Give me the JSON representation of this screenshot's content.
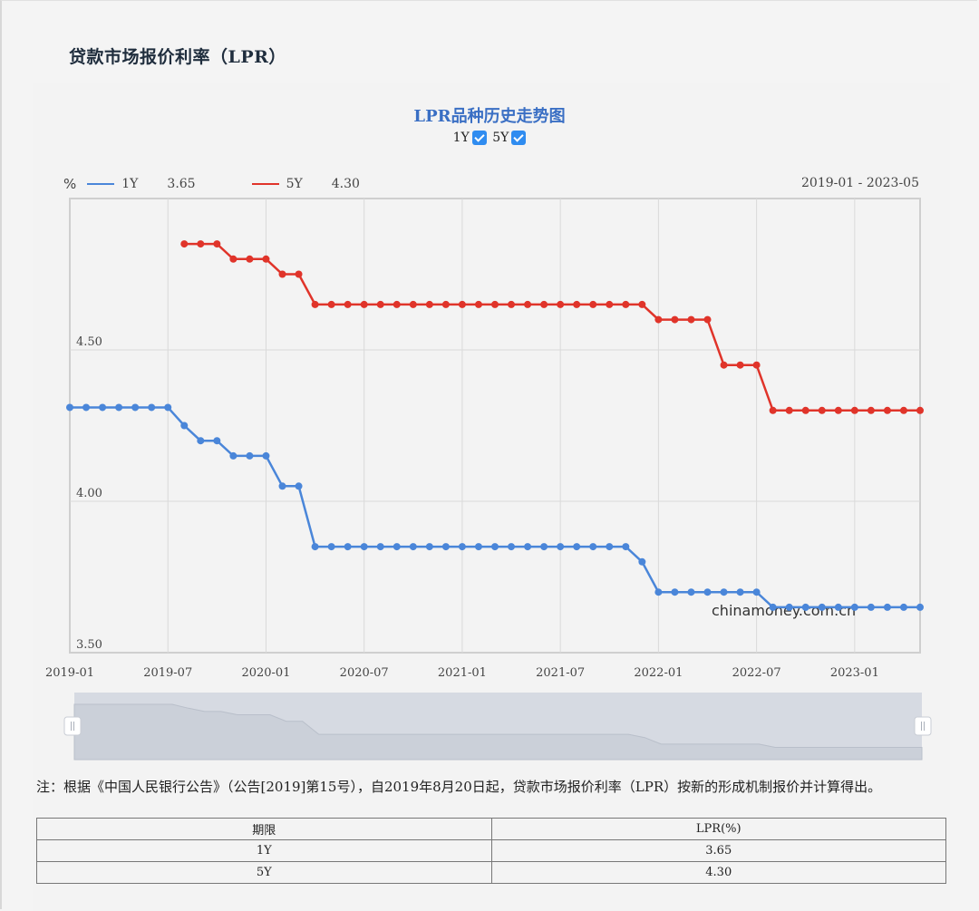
{
  "page": {
    "title": "贷款市场报价利率（LPR）"
  },
  "chart": {
    "title": "LPR品种历史走势图",
    "toggles": [
      {
        "label": "1Y",
        "checked": true
      },
      {
        "label": "5Y",
        "checked": true
      }
    ],
    "legend": {
      "unit": "%",
      "items": [
        {
          "name": "1Y",
          "value": "3.65",
          "color": "#4a86d9"
        },
        {
          "name": "5Y",
          "value": "4.30",
          "color": "#e0342a"
        }
      ]
    },
    "date_range": "2019-01 - 2023-05",
    "watermark": "chinamoney.com.cn",
    "y_ticks": [
      "3.50",
      "4.00",
      "4.50"
    ],
    "x_ticks": [
      "2019-01",
      "2019-07",
      "2020-01",
      "2020-07",
      "2021-01",
      "2021-07",
      "2022-01",
      "2022-07",
      "2023-01"
    ]
  },
  "chart_data": {
    "type": "line",
    "title": "LPR品种历史走势图",
    "xlabel": "",
    "ylabel": "%",
    "ylim": [
      3.5,
      5.0
    ],
    "grid": true,
    "legend_position": "top-left",
    "x": [
      "2019-01",
      "2019-02",
      "2019-03",
      "2019-04",
      "2019-05",
      "2019-06",
      "2019-07",
      "2019-08",
      "2019-09",
      "2019-10",
      "2019-11",
      "2019-12",
      "2020-01",
      "2020-02",
      "2020-03",
      "2020-04",
      "2020-05",
      "2020-06",
      "2020-07",
      "2020-08",
      "2020-09",
      "2020-10",
      "2020-11",
      "2020-12",
      "2021-01",
      "2021-02",
      "2021-03",
      "2021-04",
      "2021-05",
      "2021-06",
      "2021-07",
      "2021-08",
      "2021-09",
      "2021-10",
      "2021-11",
      "2021-12",
      "2022-01",
      "2022-02",
      "2022-03",
      "2022-04",
      "2022-05",
      "2022-06",
      "2022-07",
      "2022-08",
      "2022-09",
      "2022-10",
      "2022-11",
      "2022-12",
      "2023-01",
      "2023-02",
      "2023-03",
      "2023-04",
      "2023-05"
    ],
    "series": [
      {
        "name": "1Y",
        "color": "#4a86d9",
        "values": [
          4.31,
          4.31,
          4.31,
          4.31,
          4.31,
          4.31,
          4.31,
          4.25,
          4.2,
          4.2,
          4.15,
          4.15,
          4.15,
          4.05,
          4.05,
          3.85,
          3.85,
          3.85,
          3.85,
          3.85,
          3.85,
          3.85,
          3.85,
          3.85,
          3.85,
          3.85,
          3.85,
          3.85,
          3.85,
          3.85,
          3.85,
          3.85,
          3.85,
          3.85,
          3.85,
          3.8,
          3.7,
          3.7,
          3.7,
          3.7,
          3.7,
          3.7,
          3.7,
          3.65,
          3.65,
          3.65,
          3.65,
          3.65,
          3.65,
          3.65,
          3.65,
          3.65,
          3.65
        ]
      },
      {
        "name": "5Y",
        "color": "#e0342a",
        "values": [
          null,
          null,
          null,
          null,
          null,
          null,
          null,
          4.85,
          4.85,
          4.85,
          4.8,
          4.8,
          4.8,
          4.75,
          4.75,
          4.65,
          4.65,
          4.65,
          4.65,
          4.65,
          4.65,
          4.65,
          4.65,
          4.65,
          4.65,
          4.65,
          4.65,
          4.65,
          4.65,
          4.65,
          4.65,
          4.65,
          4.65,
          4.65,
          4.65,
          4.65,
          4.6,
          4.6,
          4.6,
          4.6,
          4.45,
          4.45,
          4.45,
          4.3,
          4.3,
          4.3,
          4.3,
          4.3,
          4.3,
          4.3,
          4.3,
          4.3,
          4.3
        ]
      }
    ]
  },
  "note": "注：根据《中国人民银行公告》（公告[2019]第15号），自2019年8月20日起，贷款市场报价利率（LPR）按新的形成机制报价并计算得出。",
  "table": {
    "headers": [
      "期限",
      "LPR(%)"
    ],
    "rows": [
      [
        "1Y",
        "3.65"
      ],
      [
        "5Y",
        "4.30"
      ]
    ]
  }
}
